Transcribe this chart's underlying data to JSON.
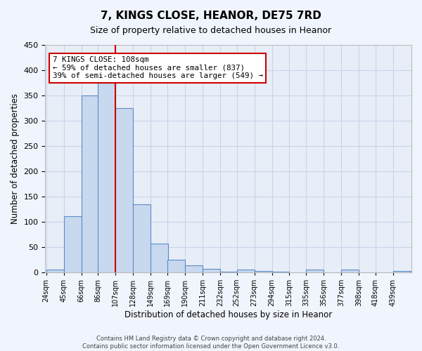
{
  "title": "7, KINGS CLOSE, HEANOR, DE75 7RD",
  "subtitle": "Size of property relative to detached houses in Heanor",
  "xlabel": "Distribution of detached houses by size in Heanor",
  "ylabel": "Number of detached properties",
  "bar_labels": [
    "24sqm",
    "45sqm",
    "66sqm",
    "86sqm",
    "107sqm",
    "128sqm",
    "149sqm",
    "169sqm",
    "190sqm",
    "211sqm",
    "232sqm",
    "252sqm",
    "273sqm",
    "294sqm",
    "315sqm",
    "335sqm",
    "356sqm",
    "377sqm",
    "398sqm",
    "418sqm",
    "439sqm"
  ],
  "bar_heights": [
    5,
    111,
    350,
    375,
    325,
    135,
    57,
    25,
    14,
    7,
    1,
    6,
    2,
    1,
    0,
    5,
    0,
    6,
    0,
    0,
    2
  ],
  "bar_color": "#c8d8ee",
  "bar_edge_color": "#5b8cc8",
  "ylim": [
    0,
    450
  ],
  "yticks": [
    0,
    50,
    100,
    150,
    200,
    250,
    300,
    350,
    400,
    450
  ],
  "property_line_x": 107,
  "property_line_label": "7 KINGS CLOSE: 108sqm",
  "annotation_line1": "← 59% of detached houses are smaller (837)",
  "annotation_line2": "39% of semi-detached houses are larger (549) →",
  "annotation_box_color": "#cc0000",
  "grid_color": "#c8d4e8",
  "background_color": "#e8eef8",
  "fig_background_color": "#f0f4fc",
  "footer_line1": "Contains HM Land Registry data © Crown copyright and database right 2024.",
  "footer_line2": "Contains public sector information licensed under the Open Government Licence v3.0.",
  "bin_width": 21
}
